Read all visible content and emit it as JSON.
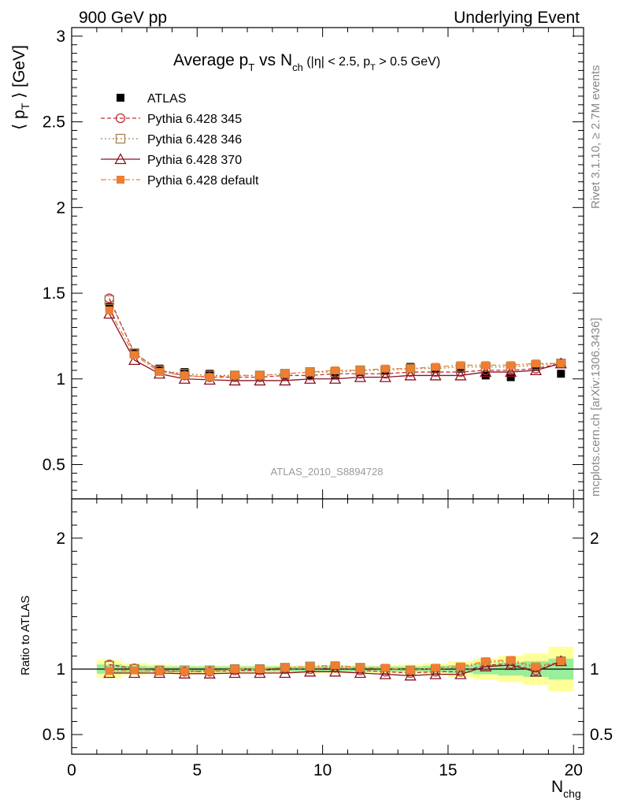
{
  "header": {
    "left": "900 GeV pp",
    "right": "Underlying Event"
  },
  "side_text": {
    "upper": "Rivet 3.1.10, ≥ 2.7M events",
    "lower": "mcplots.cern.ch [arXiv:1306.3436]"
  },
  "chart_data": [
    {
      "panel": "main",
      "type": "line",
      "title": {
        "t1": "Average p",
        "t1_sub": "T",
        "t2": " vs N",
        "t2_sub": "ch",
        "t3": " (|η| < 2.5, p",
        "t3_sub": "T",
        "t4": " > 0.5 GeV)"
      },
      "ylabel": {
        "pre": "⟨ p",
        "sub": "T",
        "post": " ⟩ [GeV]"
      },
      "watermark": "ATLAS_2010_S8894728",
      "xlim": [
        0,
        20.4
      ],
      "ylim": [
        0.3,
        3.05
      ],
      "y_ticks": [
        0.5,
        1,
        1.5,
        2,
        2.5,
        3
      ],
      "y_tick_labels": [
        "0.5",
        "1",
        "1.5",
        "2",
        "2.5",
        "3"
      ],
      "x": [
        1.5,
        2.5,
        3.5,
        4.5,
        5.5,
        6.5,
        7.5,
        8.5,
        9.5,
        10.5,
        11.5,
        12.5,
        13.5,
        14.5,
        15.5,
        16.5,
        17.5,
        18.5,
        19.5
      ],
      "data": {
        "name": "ATLAS",
        "values": [
          1.42,
          1.15,
          1.06,
          1.04,
          1.03,
          1.02,
          1.02,
          1.02,
          1.02,
          1.02,
          1.04,
          1.05,
          1.07,
          1.06,
          1.06,
          1.02,
          1.01,
          1.07,
          1.03
        ]
      },
      "series": [
        {
          "name": "Pythia 6.428 345",
          "color": "#c0303a",
          "dash": "5,3",
          "marker": "open-circle",
          "values": [
            1.47,
            1.15,
            1.05,
            1.02,
            1.01,
            1.01,
            1.01,
            1.02,
            1.02,
            1.03,
            1.03,
            1.03,
            1.04,
            1.04,
            1.04,
            1.05,
            1.05,
            1.06,
            1.09
          ]
        },
        {
          "name": "Pythia 6.428 346",
          "color": "#a8824a",
          "dash": "2,3",
          "marker": "open-square",
          "values": [
            1.46,
            1.15,
            1.05,
            1.03,
            1.02,
            1.02,
            1.02,
            1.03,
            1.04,
            1.04,
            1.05,
            1.05,
            1.06,
            1.06,
            1.07,
            1.07,
            1.07,
            1.08,
            1.09
          ]
        },
        {
          "name": "Pythia 6.428 370",
          "color": "#8a1020",
          "dash": "",
          "marker": "open-triangle",
          "values": [
            1.38,
            1.11,
            1.03,
            1.0,
            0.995,
            0.99,
            0.99,
            0.99,
            1.0,
            1.0,
            1.01,
            1.01,
            1.02,
            1.02,
            1.02,
            1.04,
            1.04,
            1.05,
            1.09
          ]
        },
        {
          "name": "Pythia 6.428 default",
          "color": "#f07e30",
          "dash": "7,3,2,3",
          "marker": "filled-square",
          "values": [
            1.4,
            1.14,
            1.04,
            1.02,
            1.01,
            1.02,
            1.02,
            1.03,
            1.04,
            1.05,
            1.05,
            1.06,
            1.06,
            1.07,
            1.08,
            1.08,
            1.08,
            1.09,
            1.09
          ]
        }
      ]
    },
    {
      "panel": "ratio",
      "type": "line",
      "ylabel": "Ratio to ATLAS",
      "xlabel": {
        "main": "N",
        "sub": "chg"
      },
      "xlim": [
        0,
        20.4
      ],
      "ylim": [
        0.35,
        2.3
      ],
      "x_ticks": [
        0,
        5,
        10,
        15,
        20
      ],
      "x_tick_labels": [
        "0",
        "5",
        "10",
        "15",
        "20"
      ],
      "y_ticks": [
        0.5,
        1,
        2
      ],
      "y_tick_labels": [
        "0.5",
        "1",
        "2"
      ],
      "band_inner": [
        0.035,
        0.025,
        0.02,
        0.02,
        0.02,
        0.02,
        0.02,
        0.02,
        0.02,
        0.02,
        0.02,
        0.02,
        0.02,
        0.025,
        0.03,
        0.04,
        0.05,
        0.06,
        0.08
      ],
      "band_outer": [
        0.07,
        0.045,
        0.035,
        0.03,
        0.03,
        0.03,
        0.03,
        0.03,
        0.03,
        0.03,
        0.03,
        0.03,
        0.035,
        0.045,
        0.06,
        0.08,
        0.1,
        0.12,
        0.17
      ],
      "series": [
        {
          "name": "Pythia 6.428 345",
          "values": [
            1.035,
            1.005,
            0.99,
            0.98,
            0.98,
            0.99,
            0.99,
            1.0,
            1.0,
            1.01,
            0.99,
            0.98,
            0.97,
            0.98,
            0.98,
            1.03,
            1.04,
            0.99,
            1.06
          ]
        },
        {
          "name": "Pythia 6.428 346",
          "values": [
            1.025,
            1.0,
            0.99,
            0.99,
            0.99,
            1.0,
            1.0,
            1.01,
            1.02,
            1.02,
            1.01,
            1.0,
            0.99,
            1.0,
            1.01,
            1.05,
            1.06,
            1.01,
            1.06
          ]
        },
        {
          "name": "Pythia 6.428 370",
          "values": [
            0.97,
            0.97,
            0.97,
            0.965,
            0.965,
            0.97,
            0.97,
            0.97,
            0.98,
            0.98,
            0.97,
            0.96,
            0.95,
            0.96,
            0.96,
            1.02,
            1.03,
            0.98,
            1.06
          ]
        },
        {
          "name": "Pythia 6.428 default",
          "values": [
            0.985,
            0.99,
            0.98,
            0.98,
            0.98,
            1.0,
            1.0,
            1.01,
            1.02,
            1.03,
            1.01,
            1.01,
            0.99,
            1.01,
            1.02,
            1.06,
            1.07,
            1.02,
            1.06
          ]
        }
      ]
    }
  ]
}
